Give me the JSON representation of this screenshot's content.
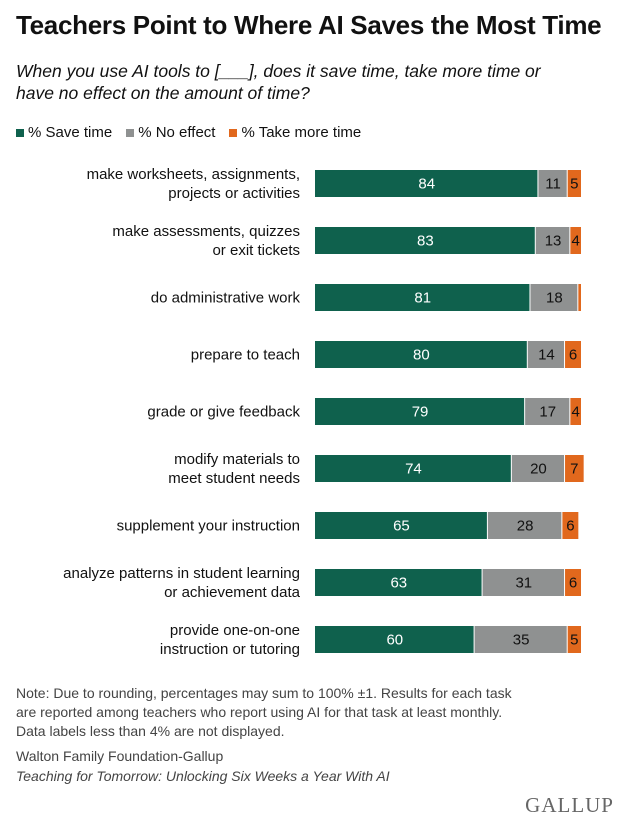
{
  "title": "Teachers Point to Where AI Saves the Most Time",
  "subtitle": "When you use AI tools to [___], does it save time, take more time or\nhave no effect on the amount of time?",
  "note": "Note: Due to rounding, percentages may sum to 100% ±1. Results for each task\nare reported among teachers who report using AI for that task at least monthly.\nData labels less than 4% are not displayed.",
  "source_org": "Walton Family Foundation-Gallup",
  "source_report": "Teaching for Tomorrow: Unlocking Six Weeks a Year With AI",
  "logo": "GALLUP",
  "colors": {
    "save": "#0f614d",
    "none": "#8f9191",
    "more": "#e1681d"
  },
  "chart_data": {
    "type": "bar",
    "orientation": "horizontal",
    "stacked": true,
    "xlim": [
      0,
      100
    ],
    "legend_position": "top-left",
    "categories": [
      "make worksheets, assignments,\nprojects or activities",
      "make assessments, quizzes\nor exit tickets",
      "do administrative work",
      "prepare to teach",
      "grade or give feedback",
      "modify materials to\nmeet student needs",
      "supplement your instruction",
      "analyze patterns in student learning\nor achievement data",
      "provide one-on-one\ninstruction or tutoring"
    ],
    "series": [
      {
        "name": "% Save time",
        "values": [
          84,
          83,
          81,
          80,
          79,
          74,
          65,
          63,
          60
        ]
      },
      {
        "name": "% No effect",
        "values": [
          11,
          13,
          18,
          14,
          17,
          20,
          28,
          31,
          35
        ]
      },
      {
        "name": "% Take more time",
        "values": [
          5,
          4,
          1,
          6,
          4,
          7,
          6,
          6,
          5
        ]
      }
    ]
  }
}
